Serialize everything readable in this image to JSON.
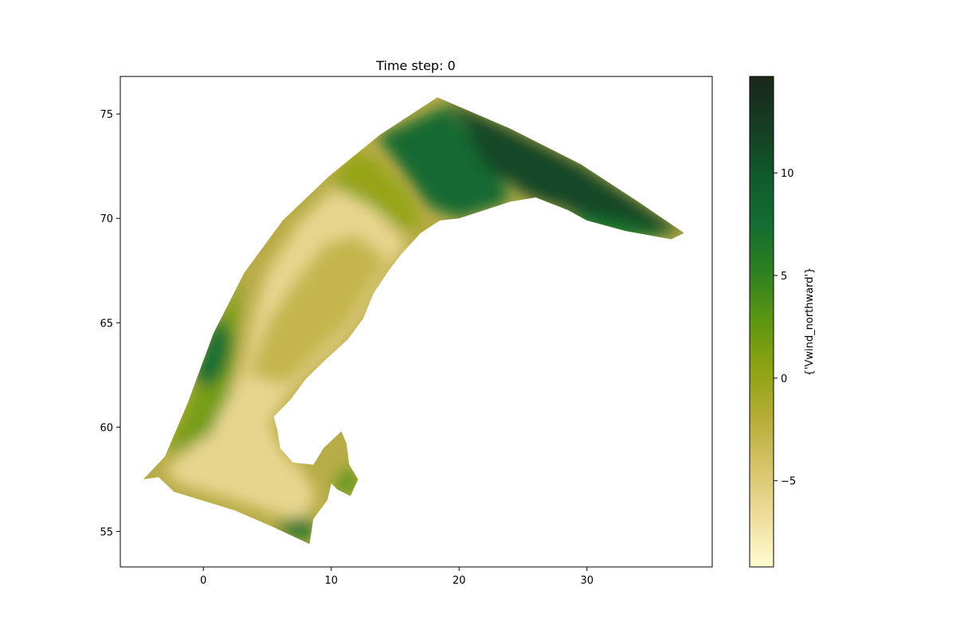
{
  "chart_data": {
    "type": "heatmap",
    "title": "Time step: 0",
    "xlabel": "",
    "ylabel": "",
    "xlim": [
      -6.5,
      39.8
    ],
    "ylim": [
      53.3,
      76.8
    ],
    "xticks": [
      0,
      10,
      20,
      30
    ],
    "yticks": [
      55,
      60,
      65,
      70,
      75
    ],
    "colorbar": {
      "label": "{'Vwind_northward'}",
      "range": [
        -9.2,
        14.7
      ],
      "ticks": [
        -5,
        0,
        5,
        10
      ],
      "colors": [
        "#fffbd0",
        "#eede9e",
        "#d8c46b",
        "#b7ad38",
        "#8ea313",
        "#5e9711",
        "#2e8020",
        "#136d32",
        "#11592b",
        "#153d23",
        "#1a281a"
      ]
    },
    "domain_outline": [
      [
        -3.0,
        58.6
      ],
      [
        -1.2,
        61.2
      ],
      [
        0.8,
        64.5
      ],
      [
        3.2,
        67.4
      ],
      [
        6.2,
        69.9
      ],
      [
        9.8,
        72.0
      ],
      [
        13.8,
        74.0
      ],
      [
        18.3,
        75.8
      ],
      [
        24.0,
        74.3
      ],
      [
        29.5,
        72.6
      ],
      [
        34.0,
        70.8
      ],
      [
        37.6,
        69.3
      ],
      [
        36.6,
        69.0
      ],
      [
        33.0,
        69.4
      ],
      [
        30.0,
        69.9
      ],
      [
        28.5,
        70.4
      ],
      [
        26.0,
        71.0
      ],
      [
        24.0,
        70.8
      ],
      [
        22.0,
        70.4
      ],
      [
        20.0,
        70.0
      ],
      [
        18.5,
        69.9
      ],
      [
        17.0,
        69.3
      ],
      [
        15.5,
        68.3
      ],
      [
        14.5,
        67.5
      ],
      [
        13.3,
        66.4
      ],
      [
        12.5,
        65.2
      ],
      [
        11.3,
        64.2
      ],
      [
        9.5,
        63.2
      ],
      [
        8.0,
        62.3
      ],
      [
        6.8,
        61.3
      ],
      [
        5.5,
        60.5
      ],
      [
        5.8,
        59.8
      ],
      [
        6.0,
        59.0
      ],
      [
        7.0,
        58.3
      ],
      [
        8.6,
        58.2
      ],
      [
        9.4,
        59.0
      ],
      [
        10.8,
        59.8
      ],
      [
        11.2,
        59.2
      ],
      [
        11.4,
        58.2
      ],
      [
        12.1,
        57.5
      ],
      [
        11.5,
        56.7
      ],
      [
        10.5,
        57.0
      ],
      [
        10.0,
        57.3
      ],
      [
        9.7,
        56.5
      ],
      [
        8.6,
        55.6
      ],
      [
        8.3,
        54.4
      ],
      [
        5.5,
        55.2
      ],
      [
        2.5,
        56.0
      ],
      [
        -2.3,
        56.9
      ],
      [
        -3.5,
        57.6
      ],
      [
        -4.7,
        57.5
      ],
      [
        -3.0,
        58.6
      ]
    ],
    "regions": [
      {
        "value": -6.0,
        "points": [
          [
            -2.0,
            57.3
          ],
          [
            3.0,
            56.4
          ],
          [
            7.8,
            55.4
          ],
          [
            8.8,
            56.8
          ],
          [
            7.6,
            58.0
          ],
          [
            6.2,
            58.8
          ],
          [
            5.2,
            60.2
          ],
          [
            6.5,
            61.4
          ],
          [
            8.5,
            62.7
          ],
          [
            10.5,
            63.8
          ],
          [
            12.2,
            65.0
          ],
          [
            13.6,
            66.6
          ],
          [
            14.8,
            67.8
          ],
          [
            16.0,
            68.8
          ],
          [
            13.5,
            70.4
          ],
          [
            10.5,
            71.6
          ],
          [
            7.5,
            69.8
          ],
          [
            5.0,
            67.5
          ],
          [
            4.0,
            65.5
          ],
          [
            3.2,
            63.0
          ],
          [
            1.5,
            60.8
          ],
          [
            -0.5,
            59.2
          ],
          [
            -3.0,
            58.0
          ]
        ]
      },
      {
        "value": -3.0,
        "points": [
          [
            3.5,
            62.5
          ],
          [
            6.5,
            62.0
          ],
          [
            9.0,
            63.5
          ],
          [
            11.5,
            65.0
          ],
          [
            13.2,
            66.8
          ],
          [
            14.5,
            68.0
          ],
          [
            12.0,
            69.2
          ],
          [
            9.5,
            68.8
          ],
          [
            7.2,
            67.0
          ],
          [
            5.2,
            65.2
          ]
        ]
      },
      {
        "value": 0.0,
        "points": [
          [
            10.0,
            71.5
          ],
          [
            13.0,
            70.6
          ],
          [
            15.5,
            69.5
          ],
          [
            17.2,
            69.5
          ],
          [
            16.0,
            71.2
          ],
          [
            13.5,
            72.8
          ],
          [
            11.5,
            73.2
          ]
        ]
      },
      {
        "value": 1.5,
        "points": [
          [
            -3.0,
            58.6
          ],
          [
            -1.2,
            61.2
          ],
          [
            0.8,
            64.5
          ],
          [
            3.0,
            67.2
          ],
          [
            2.5,
            64.0
          ],
          [
            2.0,
            61.5
          ],
          [
            0.5,
            59.6
          ]
        ]
      },
      {
        "value": 7.5,
        "points": [
          [
            -0.8,
            62.5
          ],
          [
            0.5,
            64.6
          ],
          [
            1.3,
            65.4
          ],
          [
            2.2,
            64.2
          ],
          [
            1.6,
            62.6
          ],
          [
            0.2,
            61.8
          ]
        ]
      },
      {
        "value": 8.0,
        "points": [
          [
            13.6,
            73.9
          ],
          [
            15.5,
            72.4
          ],
          [
            17.6,
            70.6
          ],
          [
            20.0,
            70.0
          ],
          [
            24.0,
            70.8
          ],
          [
            22.5,
            73.0
          ],
          [
            19.0,
            75.4
          ]
        ]
      },
      {
        "value": 11.5,
        "points": [
          [
            19.0,
            75.7
          ],
          [
            24.0,
            74.3
          ],
          [
            29.5,
            72.6
          ],
          [
            34.0,
            70.8
          ],
          [
            37.6,
            69.3
          ],
          [
            33.0,
            69.5
          ],
          [
            28.5,
            70.4
          ],
          [
            25.5,
            71.0
          ],
          [
            22.0,
            72.5
          ],
          [
            20.5,
            74.5
          ]
        ]
      },
      {
        "value": 7.0,
        "points": [
          [
            26.5,
            69.9
          ],
          [
            29.0,
            69.8
          ],
          [
            31.0,
            69.3
          ],
          [
            33.0,
            69.0
          ],
          [
            36.5,
            69.1
          ],
          [
            33.5,
            69.8
          ],
          [
            30.0,
            70.2
          ]
        ]
      },
      {
        "value": 6.5,
        "points": [
          [
            5.5,
            55.2
          ],
          [
            8.3,
            54.4
          ],
          [
            8.6,
            55.7
          ],
          [
            6.5,
            55.6
          ]
        ]
      },
      {
        "value": 3.0,
        "points": [
          [
            9.8,
            56.8
          ],
          [
            10.5,
            57.4
          ],
          [
            11.4,
            58.2
          ],
          [
            12.1,
            57.5
          ],
          [
            11.6,
            56.7
          ],
          [
            10.5,
            57.0
          ]
        ]
      }
    ]
  }
}
